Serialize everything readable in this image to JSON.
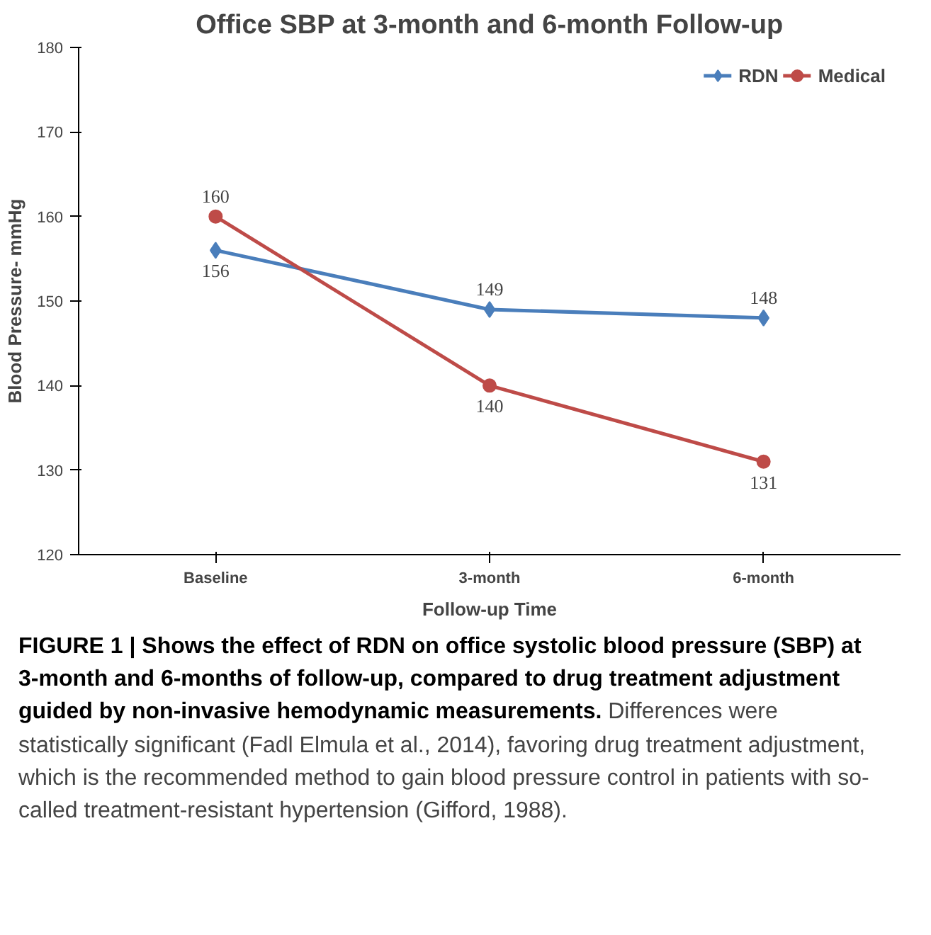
{
  "chart_data": {
    "type": "line",
    "title": "Office SBP at 3-month and 6-month Follow-up",
    "xlabel": "Follow-up Time",
    "ylabel": "Blood Pressure- mmHg",
    "categories": [
      "Baseline",
      "3-month",
      "6-month"
    ],
    "series": [
      {
        "name": "RDN",
        "color": "#4a7ebb",
        "values": [
          156,
          149,
          148
        ],
        "marker": "diamond"
      },
      {
        "name": "Medical",
        "color": "#be4b48",
        "values": [
          160,
          140,
          131
        ],
        "marker": "circle"
      }
    ],
    "ylim": [
      120,
      180
    ],
    "yticks": [
      120,
      130,
      140,
      150,
      160,
      170,
      180
    ],
    "grid": false,
    "legend": "top right",
    "data_labels": true,
    "annotations": [
      "FIGURE 1 | Shows the effect of RDN on office systolic blood pressure (SBP) at 3-month and 6-months of follow-up, compared to drug treatment adjustment guided by non-invasive hemodynamic measurements.",
      "Differences were statistically significant (Fadl Elmula et al., 2014), favoring drug treatment adjustment, which is the recommended method to gain blood pressure control in patients with so-called treatment-resistant hypertension (Gifford, 1988)."
    ]
  }
}
